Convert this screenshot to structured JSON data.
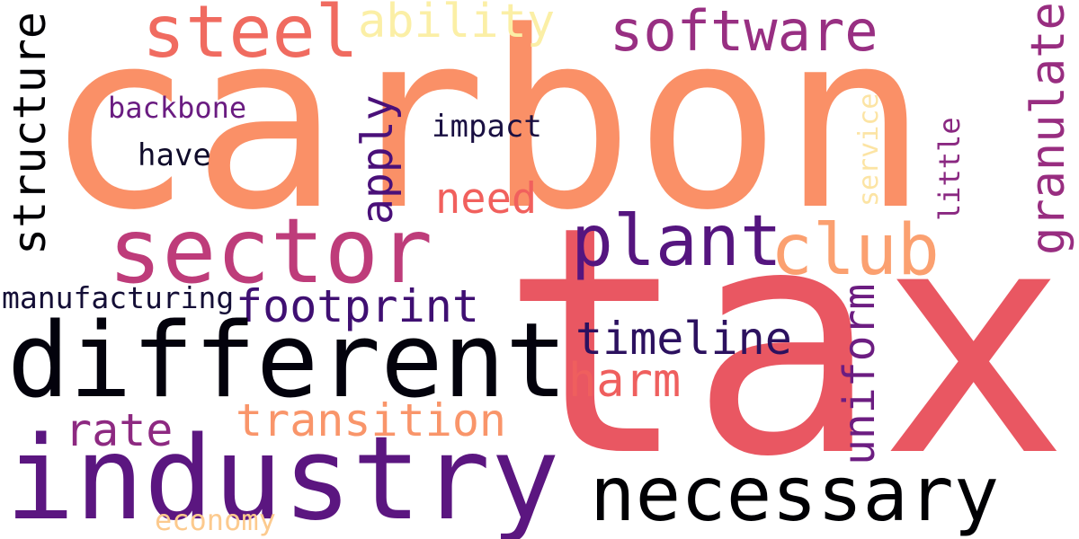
{
  "words": {
    "carbon": {
      "text": "carbon",
      "color": "#fa9067"
    },
    "tax": {
      "text": "tax",
      "color": "#e95762"
    },
    "different": {
      "text": "different",
      "color": "#03020c"
    },
    "industry": {
      "text": "industry",
      "color": "#5b1680"
    },
    "sector": {
      "text": "sector",
      "color": "#be3c7a"
    },
    "steel": {
      "text": "steel",
      "color": "#f06b60"
    },
    "software": {
      "text": "software",
      "color": "#982f82"
    },
    "ability": {
      "text": "ability",
      "color": "#fbefa6"
    },
    "plant": {
      "text": "plant",
      "color": "#55157f"
    },
    "club": {
      "text": "club",
      "color": "#fba070"
    },
    "necessary": {
      "text": "necessary",
      "color": "#000004"
    },
    "footprint": {
      "text": "footprint",
      "color": "#3f0f72"
    },
    "timeline": {
      "text": "timeline",
      "color": "#2c115f"
    },
    "transition": {
      "text": "transition",
      "color": "#f9956a"
    },
    "harm": {
      "text": "harm",
      "color": "#ef5f5e"
    },
    "need": {
      "text": "need",
      "color": "#f1605d"
    },
    "rate": {
      "text": "rate",
      "color": "#8d2981"
    },
    "backbone": {
      "text": "backbone",
      "color": "#6a1c81"
    },
    "impact": {
      "text": "impact",
      "color": "#1a1042"
    },
    "have": {
      "text": "have",
      "color": "#0f0b2a"
    },
    "manufacturing": {
      "text": "manufacturing",
      "color": "#140e36"
    },
    "economy": {
      "text": "economy",
      "color": "#fcca8e"
    },
    "structure": {
      "text": "structure",
      "color": "#000004"
    },
    "apply": {
      "text": "apply",
      "color": "#4a1079"
    },
    "uniform": {
      "text": "uniform",
      "color": "#6c1d81"
    },
    "granulate": {
      "text": "granulate",
      "color": "#982d80"
    },
    "little": {
      "text": "little",
      "color": "#8a2881"
    },
    "service": {
      "text": "service",
      "color": "#fce4a4"
    }
  }
}
